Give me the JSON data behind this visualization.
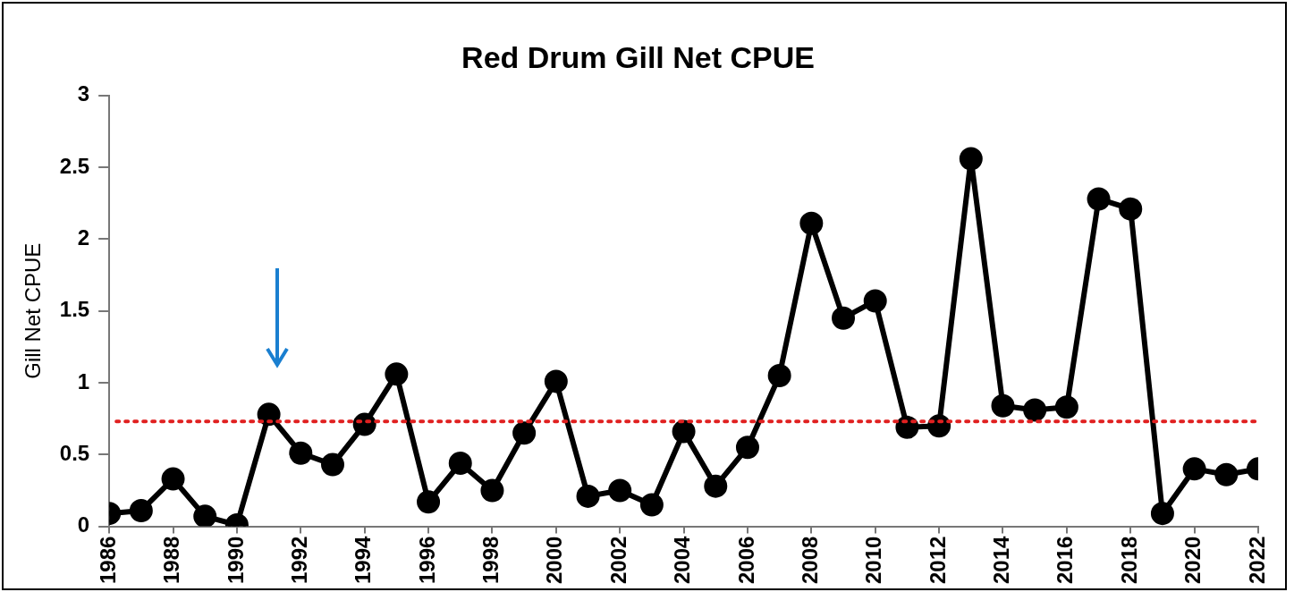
{
  "chart_data": {
    "type": "line",
    "title": "Red Drum Gill Net CPUE",
    "ylabel": "Gill Net CPUE",
    "x": [
      1986,
      1987,
      1988,
      1989,
      1990,
      1991,
      1992,
      1993,
      1994,
      1995,
      1996,
      1997,
      1998,
      1999,
      2000,
      2001,
      2002,
      2003,
      2004,
      2005,
      2006,
      2007,
      2008,
      2009,
      2010,
      2011,
      2012,
      2013,
      2014,
      2015,
      2016,
      2017,
      2018,
      2019,
      2020,
      2021,
      2022
    ],
    "series": [
      {
        "color": "#000000",
        "values": [
          0.09,
          0.11,
          0.33,
          0.07,
          0.01,
          0.78,
          0.51,
          0.43,
          0.71,
          1.06,
          0.17,
          0.44,
          0.25,
          0.65,
          1.01,
          0.21,
          0.25,
          0.15,
          0.66,
          0.28,
          0.55,
          1.05,
          2.11,
          1.45,
          1.57,
          0.69,
          0.7,
          2.56,
          0.84,
          0.81,
          0.83,
          2.28,
          2.21,
          0.09,
          0.4,
          0.36,
          0.4
        ]
      }
    ],
    "xlim": [
      1986,
      2022
    ],
    "xticks": [
      1986,
      1988,
      1990,
      1992,
      1994,
      1996,
      1998,
      2000,
      2002,
      2004,
      2006,
      2008,
      2010,
      2012,
      2014,
      2016,
      2018,
      2020,
      2022
    ],
    "ylim": [
      0,
      3
    ],
    "yticks": [
      0,
      0.5,
      1,
      1.5,
      2,
      2.5,
      3
    ],
    "ref_lines": [
      {
        "axis": "y",
        "value": 0.73,
        "color": "#e02020",
        "line_style": "dotted"
      }
    ],
    "grid": false,
    "legend": false,
    "marker": "circle",
    "line_style": "solid"
  }
}
